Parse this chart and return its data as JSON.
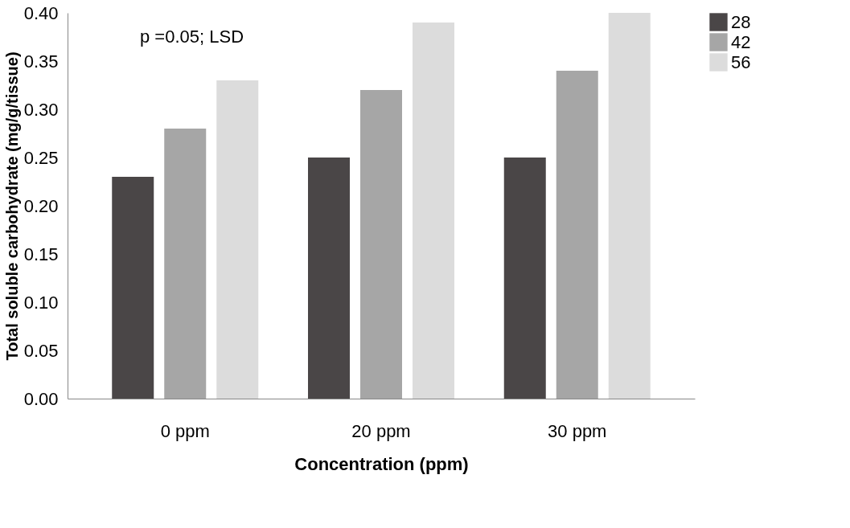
{
  "chart_data": {
    "type": "bar",
    "xlabel": "Concentration (ppm)",
    "ylabel": "Total soluble carbohydrate (mg/g/tissue)",
    "categories": [
      "0 ppm",
      "20 ppm",
      "30 ppm"
    ],
    "series": [
      {
        "name": "28",
        "color": "#4a4647",
        "values": [
          0.23,
          0.25,
          0.25
        ]
      },
      {
        "name": "42",
        "color": "#a6a6a6",
        "values": [
          0.28,
          0.32,
          0.34
        ]
      },
      {
        "name": "56",
        "color": "#dcdcdc",
        "values": [
          0.33,
          0.39,
          0.4
        ]
      }
    ],
    "ylim": [
      0,
      0.4
    ],
    "yticks": [
      {
        "value": 0,
        "label": "0.00"
      },
      {
        "value": 0.05,
        "label": "0.05"
      },
      {
        "value": 0.1,
        "label": "0.10"
      },
      {
        "value": 0.15,
        "label": "0.15"
      },
      {
        "value": 0.2,
        "label": "0.20"
      },
      {
        "value": 0.25,
        "label": "0.25"
      },
      {
        "value": 0.3,
        "label": "0.30"
      },
      {
        "value": 0.35,
        "label": "0.35"
      },
      {
        "value": 0.4,
        "label": "0.40"
      }
    ],
    "annotations": [
      "p =0.05; LSD"
    ],
    "legend": "right",
    "grid": false
  }
}
